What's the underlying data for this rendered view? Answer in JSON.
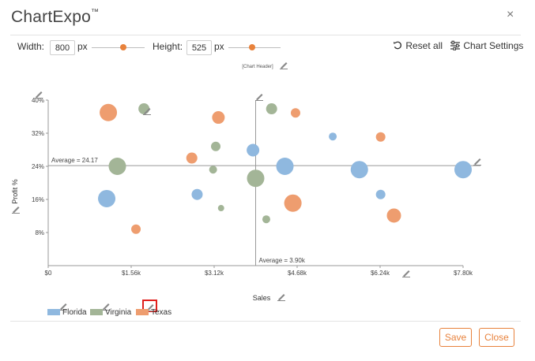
{
  "dialog": {
    "title": "ChartExpo",
    "title_mark": "™",
    "close_glyph": "×"
  },
  "toolbar": {
    "width_label": "Width:",
    "width_value": "800",
    "width_unit": "px",
    "height_label": "Height:",
    "height_value": "525",
    "height_unit": "px",
    "reset_label": "Reset all",
    "settings_label": "Chart Settings",
    "accent_color": "#e8823c"
  },
  "chart_header_placeholder": "[Chart Header]",
  "chart_data": {
    "type": "scatter",
    "xlabel": "Sales",
    "ylabel": "Profit %",
    "xlim": [
      0,
      7.8
    ],
    "ylim": [
      0,
      40
    ],
    "x_ticks": [
      "$0",
      "$1.56k",
      "$3.12k",
      "$4.68k",
      "$6.24k",
      "$7.80k"
    ],
    "y_ticks": [
      "8%",
      "16%",
      "24%",
      "32%",
      "40%"
    ],
    "x_tick_values": [
      0,
      1.56,
      3.12,
      4.68,
      6.24,
      7.8
    ],
    "y_tick_values": [
      8,
      16,
      24,
      32,
      40
    ],
    "average_x_label": "Average = 3.90k",
    "average_x": 3.9,
    "average_y_label": "Average = 24.17",
    "average_y": 24.17,
    "series": [
      {
        "name": "Florida",
        "color": "#8fb8df",
        "points": [
          {
            "x": 1.1,
            "y": 16.2,
            "size": 11
          },
          {
            "x": 2.8,
            "y": 17.2,
            "size": 7
          },
          {
            "x": 3.85,
            "y": 27.9,
            "size": 8
          },
          {
            "x": 4.45,
            "y": 24.0,
            "size": 11
          },
          {
            "x": 5.35,
            "y": 31.2,
            "size": 5
          },
          {
            "x": 5.85,
            "y": 23.2,
            "size": 11
          },
          {
            "x": 6.25,
            "y": 17.2,
            "size": 6
          },
          {
            "x": 7.8,
            "y": 23.2,
            "size": 11
          }
        ]
      },
      {
        "name": "Virginia",
        "color": "#a3b597",
        "points": [
          {
            "x": 1.8,
            "y": 37.9,
            "size": 7
          },
          {
            "x": 1.3,
            "y": 24.0,
            "size": 11
          },
          {
            "x": 3.15,
            "y": 28.8,
            "size": 6
          },
          {
            "x": 3.1,
            "y": 23.2,
            "size": 5
          },
          {
            "x": 3.25,
            "y": 13.9,
            "size": 4
          },
          {
            "x": 3.9,
            "y": 21.1,
            "size": 11
          },
          {
            "x": 4.2,
            "y": 37.9,
            "size": 7
          },
          {
            "x": 4.1,
            "y": 11.2,
            "size": 5
          }
        ]
      },
      {
        "name": "Texas",
        "color": "#ee9d6f",
        "points": [
          {
            "x": 1.13,
            "y": 37.0,
            "size": 11
          },
          {
            "x": 1.65,
            "y": 8.8,
            "size": 6
          },
          {
            "x": 2.7,
            "y": 26.0,
            "size": 7
          },
          {
            "x": 3.2,
            "y": 35.8,
            "size": 8
          },
          {
            "x": 4.65,
            "y": 36.9,
            "size": 6
          },
          {
            "x": 4.6,
            "y": 15.1,
            "size": 11
          },
          {
            "x": 6.25,
            "y": 31.1,
            "size": 6
          },
          {
            "x": 6.5,
            "y": 12.1,
            "size": 9
          }
        ]
      }
    ],
    "legend_position": "bottom-left"
  },
  "footer": {
    "save_label": "Save",
    "close_label": "Close"
  }
}
